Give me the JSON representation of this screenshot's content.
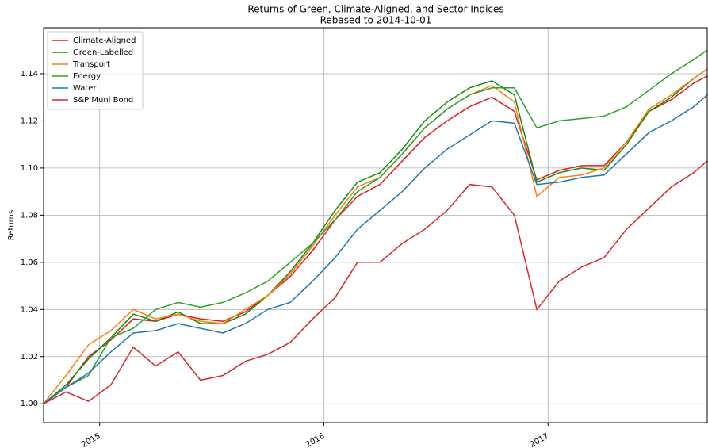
{
  "chart_data": {
    "type": "line",
    "title": "Returns of Green, Climate-Aligned, and Sector Indices",
    "subtitle": "Rebased to 2014-10-01",
    "y_label": "Returns",
    "x": [
      2014.75,
      2014.85,
      2014.95,
      2015.05,
      2015.15,
      2015.25,
      2015.35,
      2015.45,
      2015.55,
      2015.65,
      2015.75,
      2015.85,
      2015.95,
      2016.05,
      2016.15,
      2016.25,
      2016.35,
      2016.45,
      2016.55,
      2016.65,
      2016.75,
      2016.85,
      2016.95,
      2017.05,
      2017.15,
      2017.25,
      2017.35,
      2017.45,
      2017.55,
      2017.65,
      2017.71
    ],
    "series": [
      {
        "name": "Climate-Aligned",
        "color": "#e41a1c",
        "values": [
          1.0,
          1.007,
          1.02,
          1.027,
          1.036,
          1.035,
          1.038,
          1.036,
          1.035,
          1.039,
          1.046,
          1.054,
          1.065,
          1.078,
          1.088,
          1.093,
          1.103,
          1.113,
          1.12,
          1.126,
          1.13,
          1.124,
          1.095,
          1.099,
          1.101,
          1.101,
          1.111,
          1.124,
          1.129,
          1.136,
          1.139
        ]
      },
      {
        "name": "Green-Labelled",
        "color": "#138a13",
        "values": [
          1.0,
          1.008,
          1.019,
          1.028,
          1.038,
          1.035,
          1.039,
          1.034,
          1.034,
          1.038,
          1.046,
          1.056,
          1.068,
          1.082,
          1.094,
          1.098,
          1.108,
          1.12,
          1.128,
          1.134,
          1.137,
          1.131,
          1.094,
          1.098,
          1.1,
          1.099,
          1.11,
          1.124,
          1.13,
          1.138,
          1.142
        ]
      },
      {
        "name": "Transport",
        "color": "#ff7f0e",
        "values": [
          1.0,
          1.012,
          1.025,
          1.031,
          1.04,
          1.036,
          1.038,
          1.035,
          1.034,
          1.04,
          1.046,
          1.055,
          1.067,
          1.08,
          1.092,
          1.096,
          1.106,
          1.117,
          1.125,
          1.131,
          1.135,
          1.128,
          1.088,
          1.096,
          1.097,
          1.1,
          1.111,
          1.125,
          1.131,
          1.138,
          1.142
        ]
      },
      {
        "name": "Energy",
        "color": "#2ca02c",
        "values": [
          1.0,
          1.007,
          1.012,
          1.028,
          1.032,
          1.04,
          1.043,
          1.041,
          1.043,
          1.047,
          1.052,
          1.06,
          1.068,
          1.078,
          1.09,
          1.096,
          1.106,
          1.117,
          1.125,
          1.131,
          1.134,
          1.134,
          1.117,
          1.12,
          1.121,
          1.122,
          1.126,
          1.133,
          1.14,
          1.146,
          1.15
        ]
      },
      {
        "name": "Water",
        "color": "#1f77b4",
        "values": [
          1.0,
          1.007,
          1.013,
          1.022,
          1.03,
          1.031,
          1.034,
          1.032,
          1.03,
          1.034,
          1.04,
          1.043,
          1.052,
          1.062,
          1.074,
          1.082,
          1.09,
          1.1,
          1.108,
          1.114,
          1.12,
          1.119,
          1.093,
          1.094,
          1.096,
          1.097,
          1.106,
          1.115,
          1.12,
          1.126,
          1.131
        ]
      },
      {
        "name": "S&P Muni Bond",
        "color": "#d62728",
        "values": [
          1.0,
          1.005,
          1.001,
          1.008,
          1.024,
          1.016,
          1.022,
          1.01,
          1.012,
          1.018,
          1.021,
          1.026,
          1.036,
          1.045,
          1.06,
          1.06,
          1.068,
          1.074,
          1.082,
          1.093,
          1.092,
          1.08,
          1.04,
          1.052,
          1.058,
          1.062,
          1.074,
          1.083,
          1.092,
          1.098,
          1.103
        ]
      }
    ],
    "xlim": [
      2014.75,
      2017.71
    ],
    "xticks": [
      2015,
      2016,
      2017
    ],
    "ylim": [
      0.992,
      1.1595
    ],
    "yticks": [
      {
        "value": 1.0,
        "label": "1.00"
      },
      1.02,
      1.04,
      1.06,
      1.08,
      {
        "value": 1.1,
        "label": "1.10"
      },
      1.12,
      1.14
    ],
    "grid": true,
    "legend": "upper left"
  }
}
